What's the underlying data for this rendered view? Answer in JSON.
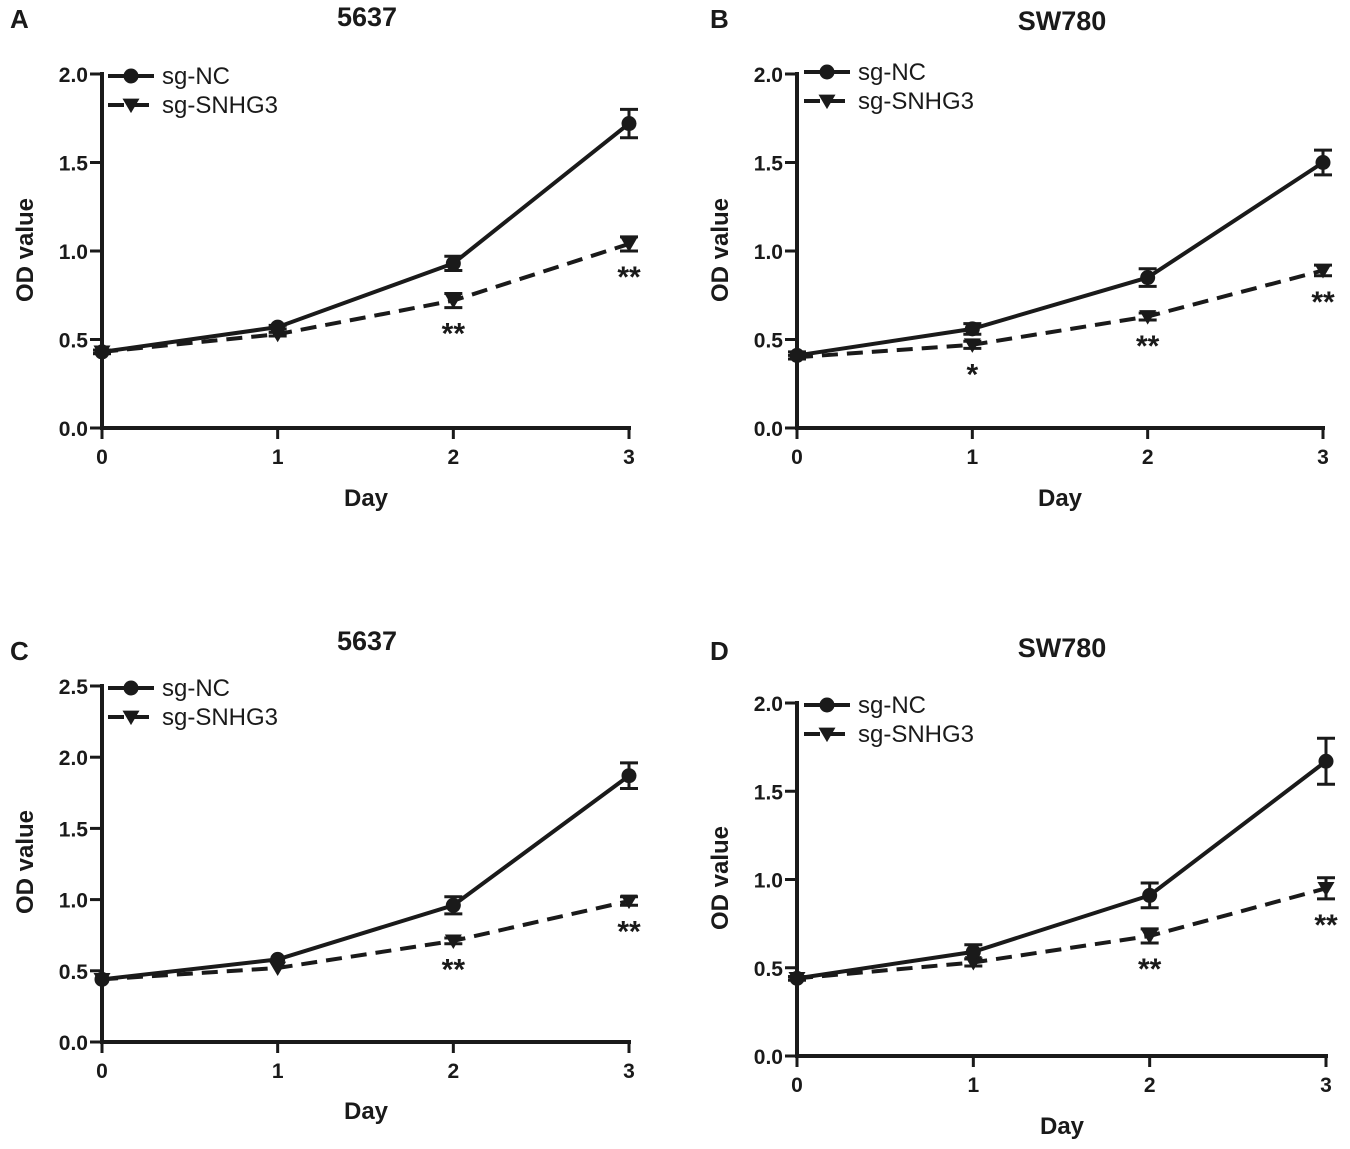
{
  "chart_data": [
    {
      "type": "line",
      "panel": "A",
      "title": "5637",
      "xlabel": "Day",
      "ylabel": "OD value",
      "x": [
        0,
        1,
        2,
        3
      ],
      "ylim": [
        0,
        2.0
      ],
      "yticks": [
        "0.0",
        "0.5",
        "1.0",
        "1.5",
        "2.0"
      ],
      "xticks": [
        "0",
        "1",
        "2",
        "3"
      ],
      "legend_position": "top-left",
      "series": [
        {
          "name": "sg-NC",
          "marker": "circle",
          "style": "solid",
          "values": [
            0.43,
            0.57,
            0.93,
            1.72
          ],
          "errors": [
            0.01,
            0.01,
            0.04,
            0.08
          ]
        },
        {
          "name": "sg-SNHG3",
          "marker": "triangle-down",
          "style": "dashed",
          "values": [
            0.43,
            0.53,
            0.72,
            1.04
          ],
          "errors": [
            0.01,
            0.01,
            0.04,
            0.04
          ]
        }
      ],
      "annotations": [
        {
          "x": 2,
          "text": "**"
        },
        {
          "x": 3,
          "text": "**"
        }
      ]
    },
    {
      "type": "line",
      "panel": "B",
      "title": "SW780",
      "xlabel": "Day",
      "ylabel": "OD value",
      "x": [
        0,
        1,
        2,
        3
      ],
      "ylim": [
        0,
        2.0
      ],
      "yticks": [
        "0.0",
        "0.5",
        "1.0",
        "1.5",
        "2.0"
      ],
      "xticks": [
        "0",
        "1",
        "2",
        "3"
      ],
      "legend_position": "top-left",
      "series": [
        {
          "name": "sg-NC",
          "marker": "circle",
          "style": "solid",
          "values": [
            0.41,
            0.56,
            0.85,
            1.5
          ],
          "errors": [
            0.02,
            0.03,
            0.05,
            0.07
          ]
        },
        {
          "name": "sg-SNHG3",
          "marker": "triangle-down",
          "style": "dashed",
          "values": [
            0.4,
            0.47,
            0.63,
            0.89
          ],
          "errors": [
            0.01,
            0.02,
            0.02,
            0.03
          ]
        }
      ],
      "annotations": [
        {
          "x": 1,
          "text": "*"
        },
        {
          "x": 2,
          "text": "**"
        },
        {
          "x": 3,
          "text": "**"
        }
      ]
    },
    {
      "type": "line",
      "panel": "C",
      "title": "5637",
      "xlabel": "Day",
      "ylabel": "OD value",
      "x": [
        0,
        1,
        2,
        3
      ],
      "ylim": [
        0,
        2.5
      ],
      "yticks": [
        "0.0",
        "0.5",
        "1.0",
        "1.5",
        "2.0",
        "2.5"
      ],
      "xticks": [
        "0",
        "1",
        "2",
        "3"
      ],
      "legend_position": "top-left",
      "series": [
        {
          "name": "sg-NC",
          "marker": "circle",
          "style": "solid",
          "values": [
            0.44,
            0.58,
            0.96,
            1.87
          ],
          "errors": [
            0.01,
            0.01,
            0.06,
            0.09
          ]
        },
        {
          "name": "sg-SNHG3",
          "marker": "triangle-down",
          "style": "dashed",
          "values": [
            0.44,
            0.52,
            0.71,
            0.99
          ],
          "errors": [
            0.01,
            0.01,
            0.02,
            0.03
          ]
        }
      ],
      "annotations": [
        {
          "x": 2,
          "text": "**"
        },
        {
          "x": 3,
          "text": "**"
        }
      ]
    },
    {
      "type": "line",
      "panel": "D",
      "title": "SW780",
      "xlabel": "Day",
      "ylabel": "OD value",
      "x": [
        0,
        1,
        2,
        3
      ],
      "ylim": [
        0,
        2.0
      ],
      "yticks": [
        "0.0",
        "0.5",
        "1.0",
        "1.5",
        "2.0"
      ],
      "xticks": [
        "0",
        "1",
        "2",
        "3"
      ],
      "legend_position": "top-left",
      "series": [
        {
          "name": "sg-NC",
          "marker": "circle",
          "style": "solid",
          "values": [
            0.44,
            0.59,
            0.91,
            1.67
          ],
          "errors": [
            0.01,
            0.04,
            0.07,
            0.13
          ]
        },
        {
          "name": "sg-SNHG3",
          "marker": "triangle-down",
          "style": "dashed",
          "values": [
            0.44,
            0.53,
            0.68,
            0.95
          ],
          "errors": [
            0.01,
            0.02,
            0.04,
            0.06
          ]
        }
      ],
      "annotations": [
        {
          "x": 2,
          "text": "**"
        },
        {
          "x": 3,
          "text": "**"
        }
      ]
    }
  ]
}
